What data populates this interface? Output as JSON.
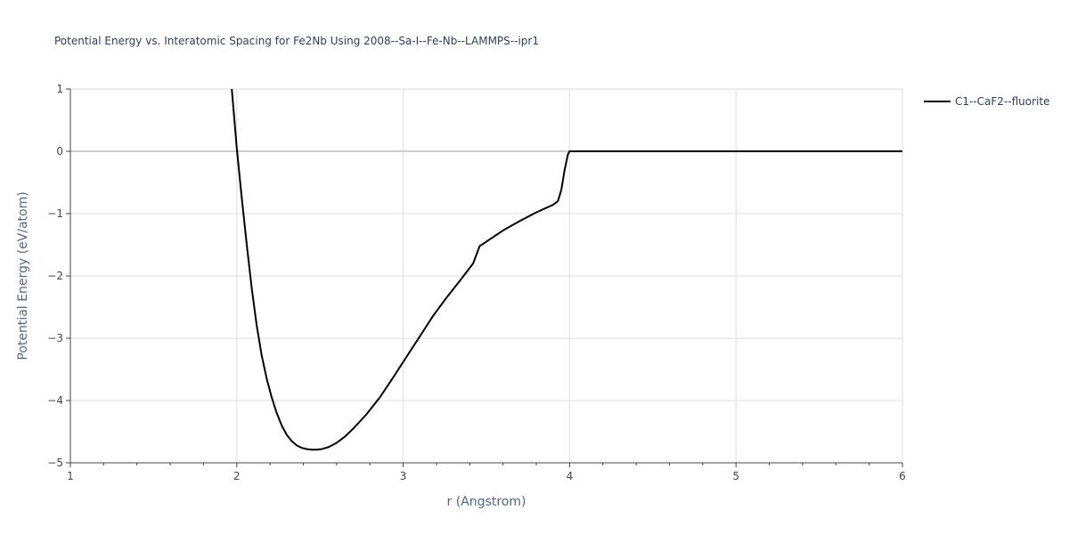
{
  "chart_data": {
    "type": "line",
    "title": "Potential Energy vs. Interatomic Spacing for Fe2Nb Using 2008--Sa-I--Fe-Nb--LAMMPS--ipr1",
    "xlabel": "r (Angstrom)",
    "ylabel": "Potential Energy (eV/atom)",
    "xlim": [
      1,
      6
    ],
    "ylim": [
      -5,
      1
    ],
    "x_ticks": [
      "1",
      "2",
      "3",
      "4",
      "5",
      "6"
    ],
    "y_ticks": [
      "1",
      "0",
      "−1",
      "−2",
      "−3",
      "−4",
      "−5"
    ],
    "grid": true,
    "legend_position": "top-right",
    "series": [
      {
        "name": "C1--CaF2--fluorite",
        "color": "#000000",
        "x": [
          1.97,
          2.0,
          2.03,
          2.06,
          2.09,
          2.12,
          2.15,
          2.18,
          2.21,
          2.24,
          2.27,
          2.3,
          2.33,
          2.36,
          2.39,
          2.42,
          2.45,
          2.48,
          2.51,
          2.55,
          2.6,
          2.65,
          2.7,
          2.78,
          2.86,
          2.94,
          3.02,
          3.1,
          3.18,
          3.26,
          3.34,
          3.42,
          3.46,
          3.5,
          3.6,
          3.7,
          3.8,
          3.9,
          3.93,
          3.95,
          3.97,
          3.99,
          4.0,
          4.2,
          4.5,
          5.0,
          5.5,
          6.0
        ],
        "y": [
          1.0,
          0.05,
          -0.75,
          -1.5,
          -2.2,
          -2.8,
          -3.28,
          -3.65,
          -3.95,
          -4.2,
          -4.4,
          -4.55,
          -4.65,
          -4.72,
          -4.76,
          -4.78,
          -4.79,
          -4.79,
          -4.78,
          -4.75,
          -4.68,
          -4.58,
          -4.45,
          -4.22,
          -3.95,
          -3.63,
          -3.3,
          -2.97,
          -2.64,
          -2.35,
          -2.08,
          -1.8,
          -1.52,
          -1.45,
          -1.27,
          -1.12,
          -0.98,
          -0.86,
          -0.8,
          -0.62,
          -0.3,
          -0.05,
          0.0,
          0.0,
          0.0,
          0.0,
          0.0,
          0.0
        ]
      }
    ]
  }
}
